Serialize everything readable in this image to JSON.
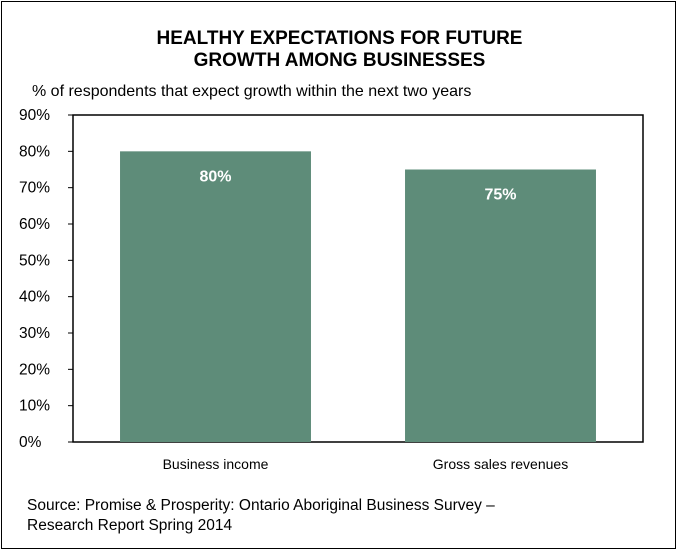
{
  "title_lines": [
    "HEALTHY EXPECTATIONS FOR FUTURE",
    "GROWTH AMONG BUSINESSES"
  ],
  "subtitle": "% of respondents that expect growth within the next two years",
  "source_lines": [
    "Source: Promise & Prosperity: Ontario Aboriginal Business Survey –",
    "Research Report Spring 2014"
  ],
  "colors": {
    "bar": "#5e8c79",
    "bar_label": "#ffffff",
    "axis": "#000000",
    "text": "#000000"
  },
  "chart_data": {
    "type": "bar",
    "categories": [
      "Business income",
      "Gross sales revenues"
    ],
    "values": [
      80,
      75
    ],
    "data_labels": [
      "80%",
      "75%"
    ],
    "ylim": [
      0,
      90
    ],
    "yticks": [
      0,
      10,
      20,
      30,
      40,
      50,
      60,
      70,
      80,
      90
    ],
    "ytick_labels": [
      "0%",
      "10%",
      "20%",
      "30%",
      "40%",
      "50%",
      "60%",
      "70%",
      "80%",
      "90%"
    ],
    "grid": false,
    "legend": "none"
  }
}
